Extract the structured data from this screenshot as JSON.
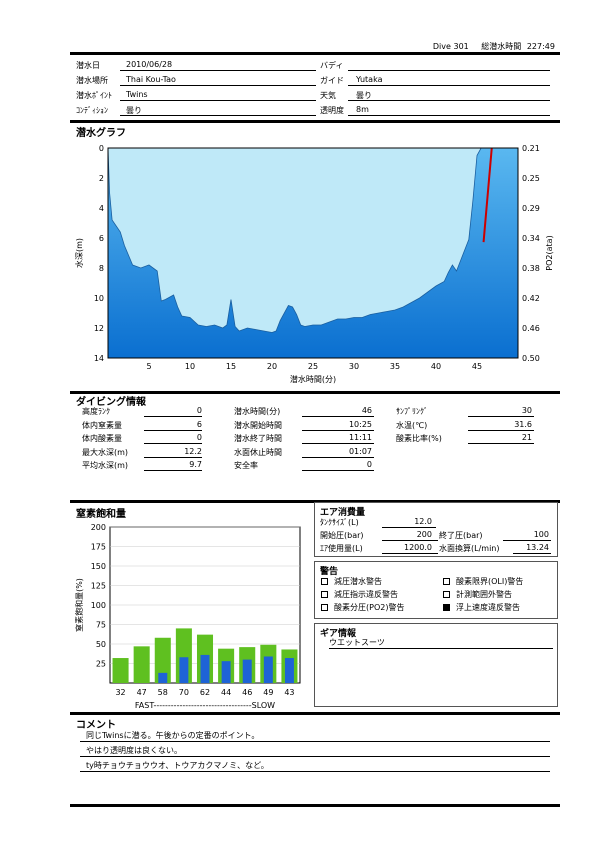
{
  "header": {
    "dive_no": "Dive 301",
    "total_time_label": "総潜水時間",
    "total_time": "227:49"
  },
  "dive_info": {
    "date": {
      "label": "潜水日",
      "value": "2010/06/28"
    },
    "buddy": {
      "label": "バディ",
      "value": ""
    },
    "location": {
      "label": "潜水場所",
      "value": "Thai Kou-Tao"
    },
    "guide": {
      "label": "ガイド",
      "value": "Yutaka"
    },
    "point": {
      "label": "潜水ﾎﾟｲﾝﾄ",
      "value": "Twins"
    },
    "weather": {
      "label": "天気",
      "value": "曇り"
    },
    "condition": {
      "label": "ｺﾝﾃﾞｨｼｮﾝ",
      "value": "曇り"
    },
    "visibility": {
      "label": "透明度",
      "value": "8m"
    }
  },
  "graph": {
    "title": "潜水グラフ",
    "colors": {
      "water": "#1f8de0",
      "fill_light": "#bfe9f8",
      "po2": "#cc0000"
    }
  },
  "chart_data": {
    "type": "area",
    "title": "潜水グラフ",
    "xlabel": "潜水時間(分)",
    "ylabel": "水深(m)",
    "y2label": "PO2(ata)",
    "x_ticks": [
      5,
      10,
      15,
      20,
      25,
      30,
      35,
      40,
      45
    ],
    "y_ticks": [
      0,
      2,
      4,
      6,
      8,
      10,
      12,
      14
    ],
    "y2_ticks": [
      "0.21",
      "0.25",
      "0.29",
      "0.34",
      "0.38",
      "0.42",
      "0.46",
      "0.50"
    ],
    "xlim": [
      0,
      50
    ],
    "ylim": [
      0,
      14
    ],
    "series": [
      {
        "type": "area",
        "x": [
          0,
          0.2,
          0.5,
          1,
          1.5,
          2,
          3,
          4,
          5,
          6,
          6.5,
          7,
          8,
          8.5,
          9,
          10,
          11,
          12,
          13,
          14,
          14.5,
          15,
          15.5,
          16,
          17,
          18,
          19,
          20,
          20.5,
          21,
          22,
          22.5,
          23,
          23.5,
          24,
          25,
          26,
          27,
          28,
          29,
          30,
          31,
          32,
          33,
          34,
          35,
          36,
          37,
          38,
          39,
          40,
          41,
          41.5,
          42,
          42.5,
          43,
          43.5,
          44,
          44.5,
          45,
          45.5,
          46
        ],
        "y": [
          0,
          3,
          4.8,
          5.2,
          5.6,
          6.5,
          7.8,
          8.0,
          7.8,
          8.2,
          10.2,
          10.1,
          9.8,
          10.6,
          11.2,
          11.3,
          11.8,
          11.9,
          11.8,
          12.0,
          11.8,
          10.1,
          11.9,
          12.2,
          12.0,
          12.1,
          12.2,
          12.3,
          12.2,
          11.5,
          10.5,
          10.6,
          11.1,
          11.8,
          11.9,
          11.8,
          11.8,
          11.6,
          11.4,
          11.4,
          11.3,
          11.3,
          11.1,
          11.0,
          10.9,
          10.8,
          10.6,
          10.3,
          10.0,
          9.6,
          9.2,
          8.9,
          8.3,
          7.8,
          8.2,
          7.5,
          6.8,
          6.1,
          3.5,
          0.5,
          0,
          0
        ]
      },
      {
        "type": "line",
        "axis": "po2",
        "x": [
          45.8,
          46.8
        ],
        "y": [
          0.34,
          0.21
        ]
      }
    ]
  },
  "diving_info": {
    "title": "ダイビング情報",
    "col1": [
      {
        "label": "高度ﾗﾝｸ",
        "value": "0"
      },
      {
        "label": "体内窒素量",
        "value": "6"
      },
      {
        "label": "体内酸素量",
        "value": "0"
      },
      {
        "label": "最大水深(m)",
        "value": "12.2"
      },
      {
        "label": "平均水深(m)",
        "value": "9.7"
      }
    ],
    "col2": [
      {
        "label": "潜水時間(分)",
        "value": "46"
      },
      {
        "label": "潜水開始時間",
        "value": "10:25"
      },
      {
        "label": "潜水終了時間",
        "value": "11:11"
      },
      {
        "label": "水面休止時間",
        "value": "01:07"
      },
      {
        "label": "安全率",
        "value": "0"
      }
    ],
    "col3": [
      {
        "label": "ｻﾝﾌﾟﾘﾝｸﾞ",
        "value": "30"
      },
      {
        "label": "水温(℃)",
        "value": "31.6"
      },
      {
        "label": "酸素比率(%)",
        "value": "21"
      }
    ]
  },
  "nitrogen": {
    "title": "窒素飽和量",
    "ylabel": "窒素飽和量(%)",
    "axis_label": "FAST----------------------------------SLOW",
    "y_ticks": [
      25,
      50,
      75,
      100,
      125,
      150,
      175,
      200
    ],
    "colors": {
      "green": "#5fc020",
      "blue": "#1e63d6"
    }
  },
  "nitrogen_chart_data": {
    "type": "bar",
    "categories": [
      "32",
      "47",
      "58",
      "70",
      "62",
      "44",
      "46",
      "49",
      "43"
    ],
    "series": [
      {
        "values": [
          32,
          47,
          58,
          70,
          62,
          44,
          46,
          49,
          43
        ]
      },
      {
        "values": [
          0,
          0,
          13,
          33,
          36,
          28,
          30,
          34,
          32
        ]
      }
    ],
    "ylim": [
      0,
      200
    ]
  },
  "air": {
    "title": "エア消費量",
    "tank_size": {
      "label": "ﾀﾝｸｻｲｽﾞ(L)",
      "value": "12.0"
    },
    "start_pressure": {
      "label": "開始圧(bar)",
      "value": "200"
    },
    "end_pressure": {
      "label": "終了圧(bar)",
      "value": "100"
    },
    "air_used": {
      "label": "ｴｱ使用量(L)",
      "value": "1200.0"
    },
    "surface_rate": {
      "label": "水面換算(L/min)",
      "value": "13.24"
    }
  },
  "warnings": {
    "title": "警告",
    "items": [
      {
        "label": "減圧潜水警告",
        "checked": false
      },
      {
        "label": "酸素限界(OLI)警告",
        "checked": false
      },
      {
        "label": "減圧指示違反警告",
        "checked": false
      },
      {
        "label": "計測範囲外警告",
        "checked": false
      },
      {
        "label": "酸素分圧(PO2)警告",
        "checked": false
      },
      {
        "label": "浮上速度違反警告",
        "checked": true
      }
    ]
  },
  "gear": {
    "title": "ギア情報",
    "item": "ウエットスーツ"
  },
  "comments": {
    "title": "コメント",
    "lines": [
      "同じTwinsに潜る。午後からの定番のポイント。",
      "やはり透明度は良くない。",
      "ty時チョウチョウウオ、トウアカクマノミ、など。"
    ]
  }
}
